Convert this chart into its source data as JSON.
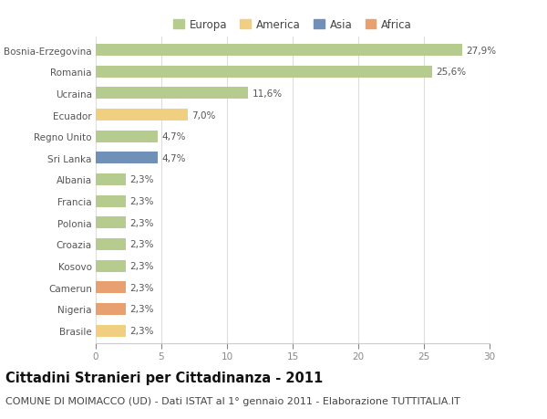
{
  "categories": [
    "Bosnia-Erzegovina",
    "Romania",
    "Ucraina",
    "Ecuador",
    "Regno Unito",
    "Sri Lanka",
    "Albania",
    "Francia",
    "Polonia",
    "Croazia",
    "Kosovo",
    "Camerun",
    "Nigeria",
    "Brasile"
  ],
  "values": [
    27.9,
    25.6,
    11.6,
    7.0,
    4.7,
    4.7,
    2.3,
    2.3,
    2.3,
    2.3,
    2.3,
    2.3,
    2.3,
    2.3
  ],
  "labels": [
    "27,9%",
    "25,6%",
    "11,6%",
    "7,0%",
    "4,7%",
    "4,7%",
    "2,3%",
    "2,3%",
    "2,3%",
    "2,3%",
    "2,3%",
    "2,3%",
    "2,3%",
    "2,3%"
  ],
  "bar_colors": [
    "#b5cc8e",
    "#b5cc8e",
    "#b5cc8e",
    "#f0d080",
    "#b5cc8e",
    "#7090b8",
    "#b5cc8e",
    "#b5cc8e",
    "#b5cc8e",
    "#b5cc8e",
    "#b5cc8e",
    "#e8a070",
    "#e8a070",
    "#f0d080"
  ],
  "legend_labels": [
    "Europa",
    "America",
    "Asia",
    "Africa"
  ],
  "legend_colors": [
    "#b5cc8e",
    "#f0d080",
    "#7090b8",
    "#e8a070"
  ],
  "title": "Cittadini Stranieri per Cittadinanza - 2011",
  "subtitle": "COMUNE DI MOIMACCO (UD) - Dati ISTAT al 1° gennaio 2011 - Elaborazione TUTTITALIA.IT",
  "xlim": [
    0,
    30
  ],
  "xticks": [
    0,
    5,
    10,
    15,
    20,
    25,
    30
  ],
  "background_color": "#ffffff",
  "plot_bg_color": "#ffffff",
  "grid_color": "#dddddd",
  "bar_height": 0.55,
  "title_fontsize": 10.5,
  "subtitle_fontsize": 8,
  "label_fontsize": 7.5,
  "tick_fontsize": 7.5,
  "legend_fontsize": 8.5
}
